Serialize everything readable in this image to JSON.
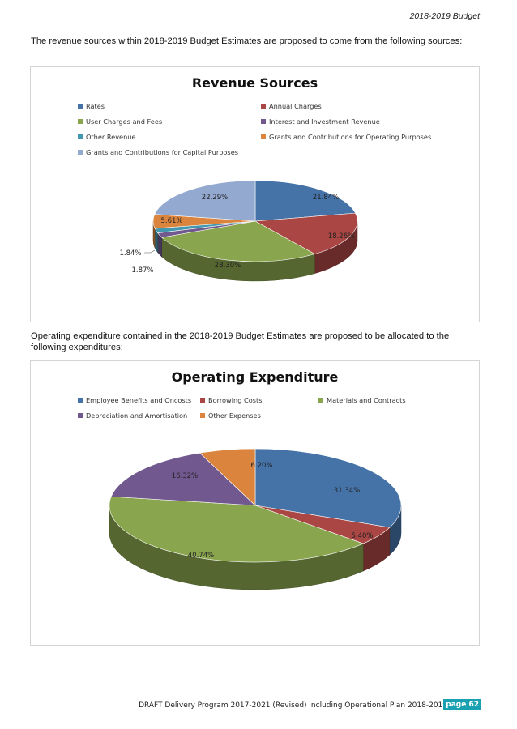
{
  "header": {
    "running_title": "2018-2019 Budget"
  },
  "intro_revenue": "The revenue sources within 2018-2019 Budget Estimates are proposed to come from the following sources:",
  "intro_expenditure": "Operating expenditure contained in the 2018-2019 Budget Estimates are proposed to be allocated to the following expenditures:",
  "footer": {
    "text": "DRAFT Delivery Program 2017-2021 (Revised) including Operational Plan 2018-2019",
    "page": "page 62"
  },
  "chart_data": [
    {
      "type": "pie",
      "title": "Revenue Sources",
      "legend_position": "top",
      "categories": [
        "Rates",
        "Annual Charges",
        "User Charges and Fees",
        "Interest and Investment Revenue",
        "Other Revenue",
        "Grants and Contributions for Operating Purposes",
        "Grants and Contributions for Capital Purposes"
      ],
      "values": [
        21.84,
        18.26,
        28.3,
        1.87,
        1.84,
        5.61,
        22.29
      ],
      "labels": [
        "21.84%",
        "18.26%",
        "28.30%",
        "1.87%",
        "1.84%",
        "5.61%",
        "22.29%"
      ],
      "colors": [
        "#4572a7",
        "#aa4643",
        "#89a54e",
        "#71588f",
        "#4198af",
        "#db843d",
        "#93a9cf"
      ]
    },
    {
      "type": "pie",
      "title": "Operating Expenditure",
      "legend_position": "top",
      "categories": [
        "Employee Benefits and Oncosts",
        "Borrowing Costs",
        "Materials and Contracts",
        "Depreciation and Amortisation",
        "Other Expenses"
      ],
      "values": [
        31.34,
        5.4,
        40.74,
        16.32,
        6.2
      ],
      "labels": [
        "31.34%",
        "5.40%",
        "40.74%",
        "16.32%",
        "6.20%"
      ],
      "colors": [
        "#4572a7",
        "#aa4643",
        "#89a54e",
        "#71588f",
        "#db843d"
      ]
    }
  ]
}
